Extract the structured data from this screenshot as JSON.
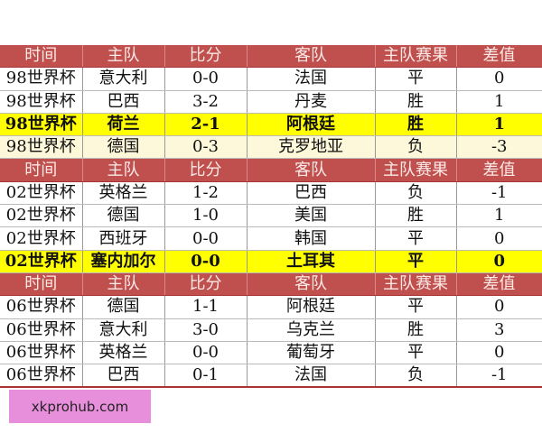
{
  "headers": [
    "时间",
    "主队",
    "比分",
    "客队",
    "主队赛果",
    "差值"
  ],
  "groups": [
    {
      "rows": [
        [
          "98世界杯",
          "意大利",
          "0-0",
          "法国",
          "平",
          "0"
        ],
        [
          "98世界杯",
          "巴西",
          "3-2",
          "丹麦",
          "胜",
          "1"
        ],
        [
          "98世界杯",
          "荷兰",
          "2-1",
          "阿根廷",
          "胜",
          "1"
        ],
        [
          "98世界杯",
          "德国",
          "0-3",
          "克罗地亚",
          "负",
          "-3"
        ]
      ],
      "row_styles": [
        "",
        "",
        "yellow",
        "cream"
      ]
    },
    {
      "rows": [
        [
          "02世界杯",
          "英格兰",
          "1-2",
          "巴西",
          "负",
          "-1"
        ],
        [
          "02世界杯",
          "德国",
          "1-0",
          "美国",
          "胜",
          "1"
        ],
        [
          "02世界杯",
          "西班牙",
          "0-0",
          "韩国",
          "平",
          "0"
        ],
        [
          "02世界杯",
          "塞内加尔",
          "0-0",
          "土耳其",
          "平",
          "0"
        ]
      ],
      "row_styles": [
        "",
        "",
        "",
        "yellow"
      ]
    },
    {
      "rows": [
        [
          "06世界杯",
          "德国",
          "1-1",
          "阿根廷",
          "平",
          "0"
        ],
        [
          "06世界杯",
          "意大利",
          "3-0",
          "乌克兰",
          "胜",
          "3"
        ],
        [
          "06世界杯",
          "英格兰",
          "0-0",
          "葡萄牙",
          "平",
          "0"
        ],
        [
          "06世界杯",
          "巴西",
          "0-1",
          "法国",
          "负",
          "-1"
        ]
      ],
      "row_styles": [
        "",
        "",
        "",
        "last"
      ]
    }
  ],
  "colors": {
    "header": "#c0504d",
    "highlight": "#ffff00",
    "cream": "#fdf8d9",
    "watermark": "#e88fdc"
  },
  "watermark": "xkprohub.com"
}
